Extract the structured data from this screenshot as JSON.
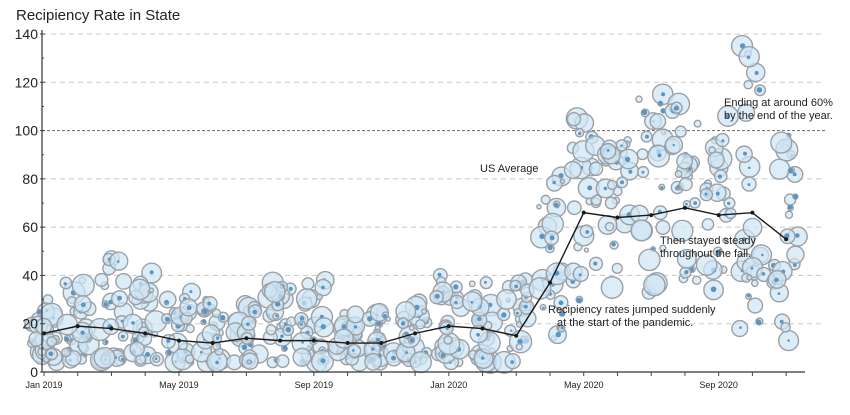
{
  "chart_data": {
    "type": "scatter",
    "title": "Recipiency Rate in State",
    "xlabel": "",
    "ylabel": "",
    "ylim": [
      0,
      140
    ],
    "yticks": [
      0,
      20,
      40,
      60,
      80,
      100,
      120,
      140
    ],
    "x_tick_labels": [
      "Jan 2019",
      "May 2019",
      "Sep 2019",
      "Jan 2020",
      "May 2020",
      "Sep 2020"
    ],
    "x_tick_positions": [
      0,
      4,
      8,
      12,
      16,
      20
    ],
    "grid": "horizontal dashed",
    "reference_line": {
      "value": 100
    },
    "series": [
      {
        "kind": "average-line",
        "months": [
          0,
          1,
          2,
          3,
          4,
          5,
          6,
          7,
          8,
          9,
          10,
          11,
          12,
          13,
          14,
          15,
          16,
          17,
          18,
          19,
          20,
          21,
          22
        ],
        "values": [
          16,
          19,
          18,
          16,
          13,
          12,
          14,
          13,
          13,
          12,
          12,
          16,
          19,
          18,
          15,
          37,
          66,
          64,
          65,
          68,
          65,
          66,
          55
        ]
      },
      {
        "kind": "state-bubbles",
        "months": [
          0,
          1,
          2,
          3,
          4,
          5,
          6,
          7,
          8,
          9,
          10,
          11,
          12,
          13,
          14,
          15,
          16,
          17,
          18,
          19,
          20,
          21,
          22
        ],
        "min_values": [
          4,
          5,
          5,
          5,
          4,
          4,
          4,
          4,
          4,
          4,
          4,
          4,
          4,
          4,
          4,
          14,
          30,
          35,
          33,
          38,
          34,
          18,
          13
        ],
        "max_values": [
          30,
          38,
          47,
          41,
          33,
          30,
          28,
          37,
          38,
          24,
          25,
          29,
          40,
          37,
          38,
          81,
          105,
          96,
          115,
          111,
          106,
          135,
          98
        ]
      }
    ],
    "annotations": [
      {
        "text": "US Average"
      },
      {
        "text": "Ending at around 60%",
        "text2": "by the end of the year."
      },
      {
        "text": "Then stayed steady",
        "text2": "throughout the fall."
      },
      {
        "text": "Recipiency rates jumped suddenly",
        "text2": "at the start of the pandemic."
      }
    ],
    "colors": {
      "bubble_fill": "#cfe6f5",
      "bubble_stroke": "#9aa0a6",
      "bubble_dot": "#5b95c2",
      "average_line": "#1a1a1a",
      "grid": "#c8c8c8",
      "reference_line": "#777777"
    }
  }
}
